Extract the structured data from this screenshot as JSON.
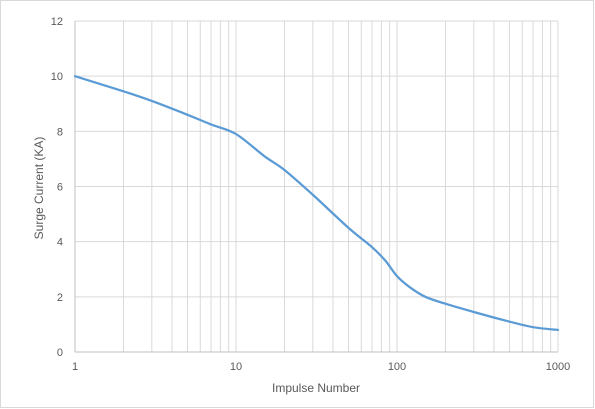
{
  "chart_data": {
    "type": "line",
    "title": "",
    "xlabel": "Impulse Number",
    "ylabel": "Surge Current (KA)",
    "x_scale": "log",
    "xlim": [
      1,
      1000
    ],
    "ylim": [
      0,
      12
    ],
    "x_ticks": [
      1,
      10,
      100,
      1000
    ],
    "x_tick_labels": [
      "1",
      "10",
      "100",
      "1000"
    ],
    "y_ticks": [
      0,
      2,
      4,
      6,
      8,
      10,
      12
    ],
    "y_tick_labels": [
      "0",
      "2",
      "4",
      "6",
      "8",
      "10",
      "12"
    ],
    "grid": true,
    "legend": "none",
    "line_color": "#5b9bd5",
    "grid_color": "#d9d9d9",
    "series": [
      {
        "x": [
          1,
          2,
          3,
          5,
          7,
          10,
          15,
          20,
          30,
          50,
          70,
          85,
          100,
          120,
          150,
          200,
          300,
          500,
          700,
          1000
        ],
        "values": [
          10.0,
          9.45,
          9.1,
          8.6,
          8.25,
          7.9,
          7.1,
          6.6,
          5.7,
          4.5,
          3.8,
          3.3,
          2.75,
          2.35,
          2.0,
          1.75,
          1.45,
          1.1,
          0.9,
          0.8
        ]
      }
    ]
  }
}
